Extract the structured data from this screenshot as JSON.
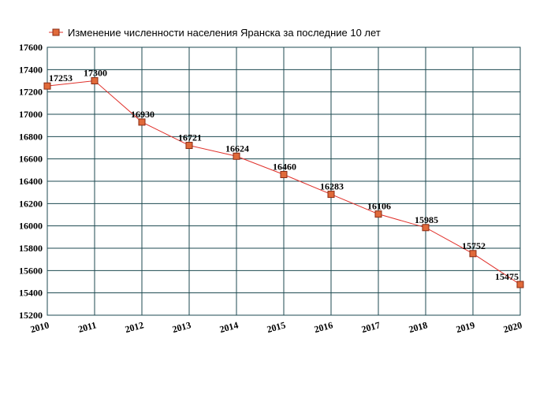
{
  "chart_data": {
    "type": "line",
    "legend_position": "top",
    "grid": true,
    "colors": {
      "line": "#e0302a",
      "marker_fill": "#e06a3a",
      "marker_stroke": "#8a2a12",
      "grid": "#1d4a50",
      "frame": "#1d4a50"
    },
    "categories": [
      "2010",
      "2011",
      "2012",
      "2013",
      "2014",
      "2015",
      "2016",
      "2017",
      "2018",
      "2019",
      "2020"
    ],
    "series": [
      {
        "name": "Изменение численности населения Яранска за последние 10 лет",
        "values": [
          17253,
          17300,
          16930,
          16721,
          16624,
          16460,
          16283,
          16106,
          15985,
          15752,
          15475
        ]
      }
    ],
    "ylim": [
      15200,
      17600
    ],
    "yticks": [
      15200,
      15400,
      15600,
      15800,
      16000,
      16200,
      16400,
      16600,
      16800,
      17000,
      17200,
      17400,
      17600
    ]
  }
}
